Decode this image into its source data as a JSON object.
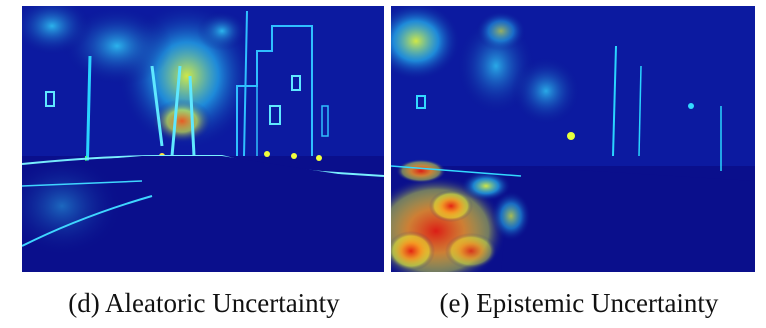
{
  "panels": [
    {
      "caption": "(d) Aleatoric Uncertainty"
    },
    {
      "caption": "(e) Epistemic Uncertainty"
    }
  ],
  "colors": {
    "background_low": "#0a0f8c",
    "mid_cyan": "#22c8ff",
    "mid_yellow": "#e6ff3c",
    "high_red": "#e61e10"
  }
}
